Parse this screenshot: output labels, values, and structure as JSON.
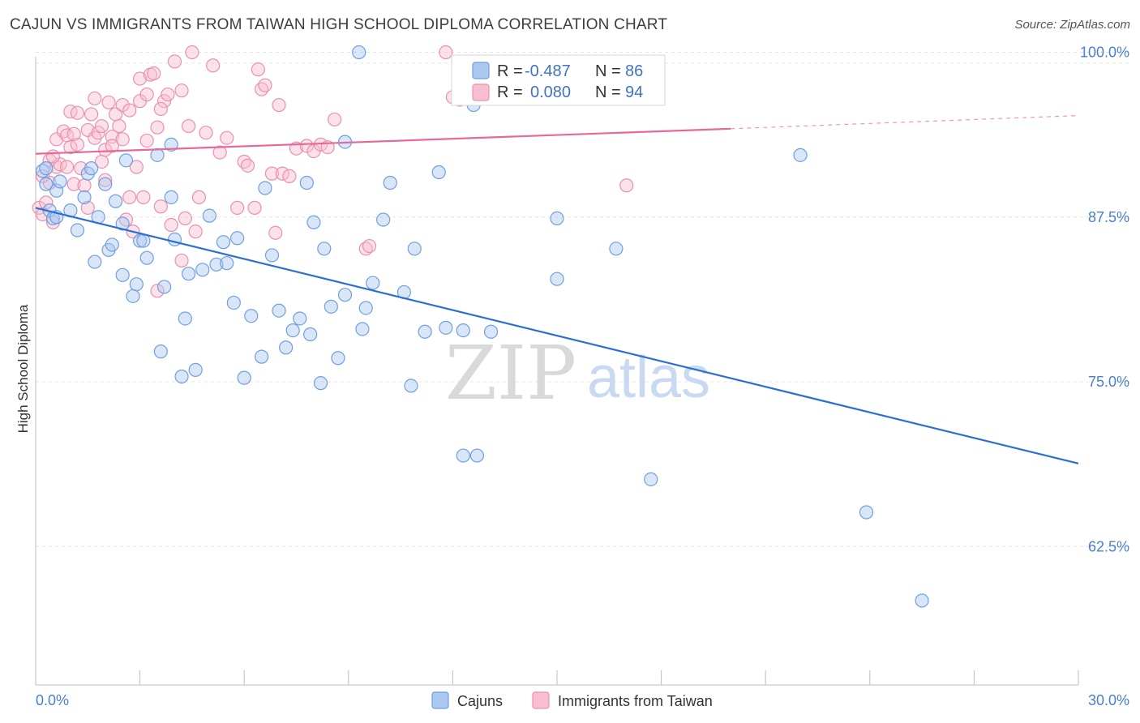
{
  "header": {
    "title": "CAJUN VS IMMIGRANTS FROM TAIWAN HIGH SCHOOL DIPLOMA CORRELATION CHART",
    "source": "Source: ZipAtlas.com"
  },
  "watermark": {
    "zip": "ZIP",
    "atlas": "atlas"
  },
  "colors": {
    "blue_fill": "#aac8f0",
    "blue_stroke": "#6f9fe0",
    "blue_line": "#2a6fd6",
    "pink_fill": "#f7bfd0",
    "pink_stroke": "#ec8fae",
    "pink_line": "#e5699a",
    "tick_text": "#4a7fd0",
    "grid": "#e4e4e4"
  },
  "legend_top": {
    "rows": [
      {
        "r_label": "R =",
        "r_value": "-0.487",
        "n_label": "N =",
        "n_value": "86"
      },
      {
        "r_label": "R =",
        "r_value": "0.080",
        "n_label": "N =",
        "n_value": "94"
      }
    ]
  },
  "chart_data": {
    "type": "scatter",
    "title": "CAJUN VS IMMIGRANTS FROM TAIWAN HIGH SCHOOL DIPLOMA CORRELATION CHART",
    "xlabel": "",
    "ylabel": "High School Diploma",
    "xlim": [
      0,
      30
    ],
    "ylim": [
      52,
      102
    ],
    "x_tick_labels": [
      {
        "value": 0,
        "label": "0.0%"
      },
      {
        "value": 30,
        "label": "30.0%"
      }
    ],
    "x_ticks": [
      0,
      3,
      6,
      9,
      12,
      15,
      18,
      21,
      24,
      27,
      30
    ],
    "y_ticks": [
      {
        "value": 100,
        "label": "100.0%"
      },
      {
        "value": 87.5,
        "label": "87.5%"
      },
      {
        "value": 75,
        "label": "75.0%"
      },
      {
        "value": 62.5,
        "label": "62.5%"
      }
    ],
    "series": [
      {
        "name": "Cajuns",
        "r": -0.487,
        "n": 86,
        "trend": {
          "x": [
            0,
            30
          ],
          "y": [
            88.2,
            68.8
          ]
        },
        "points": [
          [
            0.2,
            91
          ],
          [
            0.3,
            90
          ],
          [
            0.4,
            88
          ],
          [
            0.5,
            87.4
          ],
          [
            0.6,
            89.5
          ],
          [
            0.7,
            90.2
          ],
          [
            1.0,
            88
          ],
          [
            1.2,
            86.5
          ],
          [
            1.4,
            89
          ],
          [
            1.5,
            90.8
          ],
          [
            1.6,
            91.2
          ],
          [
            1.7,
            84.1
          ],
          [
            1.8,
            87.5
          ],
          [
            2.0,
            90
          ],
          [
            2.1,
            85
          ],
          [
            2.2,
            85.4
          ],
          [
            2.3,
            88.7
          ],
          [
            2.5,
            87
          ],
          [
            2.5,
            83.1
          ],
          [
            2.6,
            91.8
          ],
          [
            2.8,
            81.5
          ],
          [
            2.9,
            82.4
          ],
          [
            3.0,
            85.7
          ],
          [
            3.1,
            85.7
          ],
          [
            3.2,
            84.4
          ],
          [
            3.5,
            92.2
          ],
          [
            3.6,
            77.3
          ],
          [
            3.7,
            82.2
          ],
          [
            3.9,
            93
          ],
          [
            3.9,
            89
          ],
          [
            4.0,
            85.8
          ],
          [
            4.2,
            75.4
          ],
          [
            4.3,
            79.8
          ],
          [
            4.4,
            83.2
          ],
          [
            4.6,
            75.9
          ],
          [
            4.8,
            83.5
          ],
          [
            5.0,
            87.6
          ],
          [
            5.2,
            83.9
          ],
          [
            5.4,
            85.6
          ],
          [
            5.5,
            84
          ],
          [
            5.7,
            81
          ],
          [
            5.8,
            85.9
          ],
          [
            6.0,
            75.3
          ],
          [
            6.2,
            80
          ],
          [
            6.5,
            76.9
          ],
          [
            6.6,
            89.7
          ],
          [
            6.8,
            84.6
          ],
          [
            7.0,
            80.4
          ],
          [
            7.2,
            77.6
          ],
          [
            7.4,
            78.9
          ],
          [
            7.6,
            79.8
          ],
          [
            7.8,
            90.1
          ],
          [
            7.9,
            78.6
          ],
          [
            8.0,
            87.1
          ],
          [
            8.2,
            74.9
          ],
          [
            8.3,
            85.1
          ],
          [
            8.5,
            80.7
          ],
          [
            8.7,
            76.8
          ],
          [
            8.9,
            81.6
          ],
          [
            8.9,
            93.2
          ],
          [
            9.3,
            100
          ],
          [
            9.4,
            79
          ],
          [
            9.5,
            80.6
          ],
          [
            9.7,
            82.5
          ],
          [
            10.0,
            87.3
          ],
          [
            10.2,
            90.1
          ],
          [
            10.6,
            81.8
          ],
          [
            10.8,
            74.7
          ],
          [
            10.9,
            85.1
          ],
          [
            11.2,
            78.8
          ],
          [
            11.6,
            90.9
          ],
          [
            11.8,
            79.1
          ],
          [
            12.3,
            78.9
          ],
          [
            12.3,
            69.4
          ],
          [
            12.6,
            96
          ],
          [
            12.7,
            69.4
          ],
          [
            13.1,
            78.8
          ],
          [
            15.0,
            87.4
          ],
          [
            15.0,
            82.8
          ],
          [
            16.7,
            85.1
          ],
          [
            17.7,
            67.6
          ],
          [
            22.0,
            92.2
          ],
          [
            23.9,
            65.1
          ],
          [
            25.5,
            58.4
          ],
          [
            0.3,
            91.2
          ],
          [
            0.6,
            87.5
          ]
        ]
      },
      {
        "name": "Immigrants from Taiwan",
        "r": 0.08,
        "n": 94,
        "trend": {
          "x": [
            0,
            20
          ],
          "y": [
            92.3,
            94.2
          ]
        },
        "trend_dashed": {
          "x": [
            20,
            30
          ],
          "y": [
            94.2,
            95.2
          ]
        },
        "points": [
          [
            0.1,
            88.2
          ],
          [
            0.2,
            87.7
          ],
          [
            0.3,
            88.6
          ],
          [
            0.4,
            91.8
          ],
          [
            0.4,
            90.1
          ],
          [
            0.5,
            87.1
          ],
          [
            0.6,
            91.3
          ],
          [
            0.6,
            93.4
          ],
          [
            0.7,
            91.5
          ],
          [
            0.8,
            94
          ],
          [
            0.9,
            91.3
          ],
          [
            0.9,
            93.7
          ],
          [
            1.0,
            95.5
          ],
          [
            1.0,
            92.8
          ],
          [
            1.1,
            90
          ],
          [
            1.2,
            93
          ],
          [
            1.2,
            95.4
          ],
          [
            1.3,
            91.2
          ],
          [
            1.4,
            89.9
          ],
          [
            1.5,
            88.2
          ],
          [
            1.5,
            94.1
          ],
          [
            1.6,
            95.3
          ],
          [
            1.7,
            96.5
          ],
          [
            1.7,
            93.5
          ],
          [
            1.8,
            93.9
          ],
          [
            1.9,
            91.7
          ],
          [
            1.9,
            94.4
          ],
          [
            2.0,
            92.6
          ],
          [
            2.0,
            90.3
          ],
          [
            2.1,
            96.2
          ],
          [
            2.2,
            93.6
          ],
          [
            2.3,
            95.3
          ],
          [
            2.4,
            94.4
          ],
          [
            2.5,
            96
          ],
          [
            2.5,
            93.4
          ],
          [
            2.6,
            87.3
          ],
          [
            2.7,
            95.6
          ],
          [
            2.7,
            89
          ],
          [
            2.8,
            86.4
          ],
          [
            2.9,
            91.3
          ],
          [
            3.0,
            96.3
          ],
          [
            3.0,
            98
          ],
          [
            3.1,
            89
          ],
          [
            3.2,
            93.3
          ],
          [
            3.2,
            96.8
          ],
          [
            3.3,
            98.3
          ],
          [
            3.4,
            98.4
          ],
          [
            3.5,
            94.3
          ],
          [
            3.5,
            81.9
          ],
          [
            3.6,
            88.3
          ],
          [
            3.7,
            96.3
          ],
          [
            3.8,
            96.8
          ],
          [
            3.9,
            86.9
          ],
          [
            4.0,
            99.3
          ],
          [
            4.2,
            97.1
          ],
          [
            4.2,
            84.2
          ],
          [
            4.3,
            87.4
          ],
          [
            4.4,
            94.4
          ],
          [
            4.5,
            100
          ],
          [
            4.7,
            89
          ],
          [
            4.9,
            93.9
          ],
          [
            5.1,
            99
          ],
          [
            5.5,
            93.5
          ],
          [
            5.8,
            88.2
          ],
          [
            6.0,
            91.7
          ],
          [
            6.3,
            88.2
          ],
          [
            6.4,
            98.7
          ],
          [
            6.5,
            97.2
          ],
          [
            6.6,
            97.5
          ],
          [
            6.8,
            90.8
          ],
          [
            6.9,
            86.3
          ],
          [
            7.0,
            96
          ],
          [
            7.1,
            90.8
          ],
          [
            7.3,
            90.6
          ],
          [
            7.5,
            92.7
          ],
          [
            7.8,
            92.9
          ],
          [
            8.0,
            92.5
          ],
          [
            8.2,
            93
          ],
          [
            8.6,
            94.9
          ],
          [
            9.5,
            85.1
          ],
          [
            9.6,
            85.3
          ],
          [
            11.8,
            100
          ],
          [
            12.0,
            96.6
          ],
          [
            12.2,
            96.4
          ],
          [
            17.0,
            89.9
          ],
          [
            0.2,
            90.6
          ],
          [
            0.5,
            92.1
          ],
          [
            1.1,
            93.8
          ],
          [
            2.2,
            92.9
          ],
          [
            3.6,
            95.7
          ],
          [
            4.6,
            86.4
          ],
          [
            5.3,
            92.4
          ],
          [
            6.1,
            91.4
          ],
          [
            8.4,
            92.8
          ]
        ]
      }
    ]
  },
  "legend_bottom": {
    "items": [
      {
        "label": "Cajuns"
      },
      {
        "label": "Immigrants from Taiwan"
      }
    ]
  }
}
